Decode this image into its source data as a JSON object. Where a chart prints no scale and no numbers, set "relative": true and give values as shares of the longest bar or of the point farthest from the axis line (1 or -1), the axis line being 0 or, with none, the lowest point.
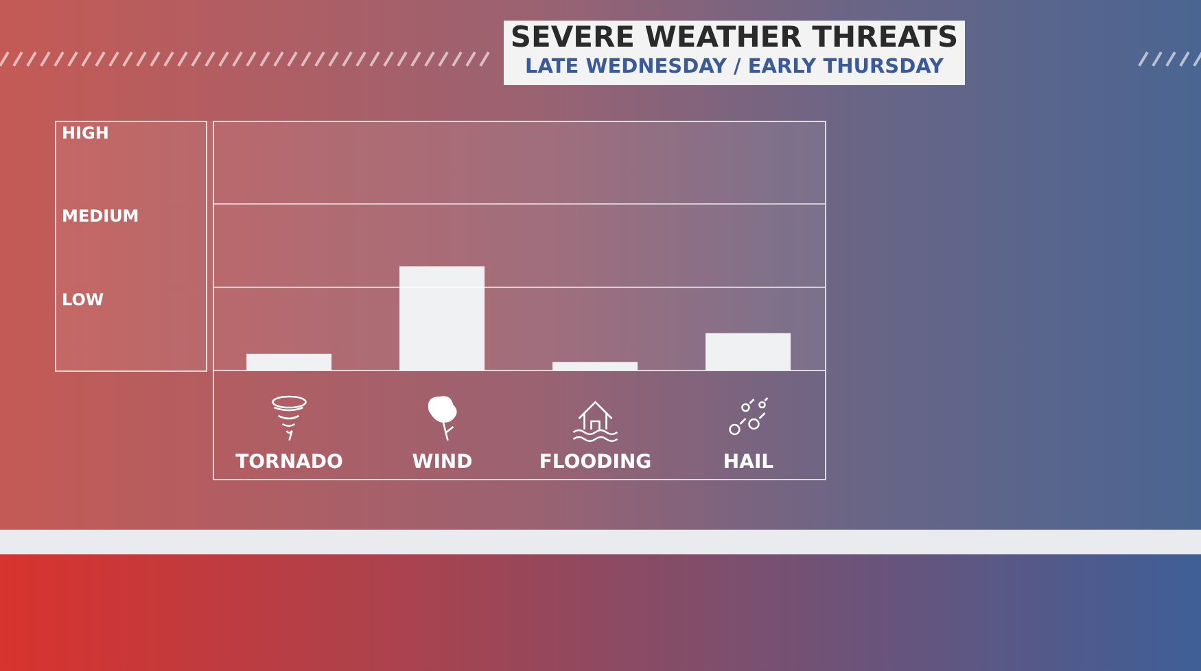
{
  "chart_data": {
    "type": "bar",
    "title": "SEVERE WEATHER THREATS",
    "subtitle": "LATE WEDNESDAY / EARLY THURSDAY",
    "categories": [
      "TORNADO",
      "WIND",
      "FLOODING",
      "HAIL"
    ],
    "values": [
      0.16,
      1,
      0.08,
      0.36
    ],
    "color": "#f0f1f2",
    "relative": true,
    "bands": [
      {
        "axis": "y",
        "from": 0,
        "to": 0.8,
        "label": "LOW"
      },
      {
        "axis": "y",
        "from": 0.8,
        "to": 1.6,
        "label": "MEDIUM"
      },
      {
        "axis": "y",
        "from": 1.6,
        "to": 2.4,
        "label": "HIGH"
      }
    ],
    "ref_lines": [
      {
        "axis": "y",
        "value": 0.8
      },
      {
        "axis": "y",
        "value": 1.6
      }
    ]
  }
}
